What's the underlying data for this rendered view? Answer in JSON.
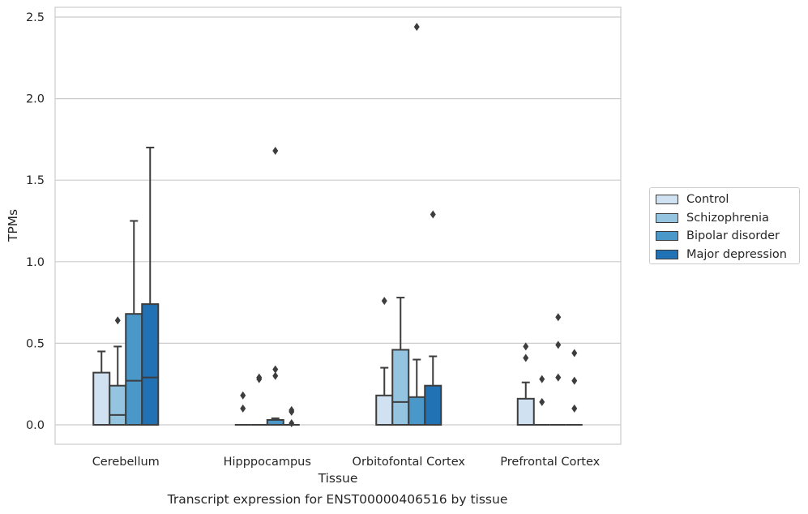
{
  "caption": "Transcript expression for ENST00000406516 by tissue",
  "chart_data": {
    "type": "box",
    "xlabel": "Tissue",
    "ylabel": "TPMs",
    "ylim": [
      -0.12,
      2.56
    ],
    "yticks": [
      "0.0",
      "0.5",
      "1.0",
      "1.5",
      "2.0",
      "2.5"
    ],
    "categories": [
      "Cerebellum",
      "Hipppocampus",
      "Orbitofontal Cortex",
      "Prefrontal Cortex"
    ],
    "grid": true,
    "legend_position": "right",
    "series": [
      {
        "name": "Control",
        "color": "#d0e1f1",
        "boxes": [
          {
            "q1": 0,
            "median": 0,
            "q3": 0.32,
            "whisker_low": 0,
            "whisker_high": 0.45,
            "outliers": []
          },
          {
            "q1": 0,
            "median": 0,
            "q3": 0,
            "whisker_low": 0,
            "whisker_high": 0,
            "outliers": [
              0.1,
              0.18
            ]
          },
          {
            "q1": 0,
            "median": 0,
            "q3": 0.18,
            "whisker_low": 0,
            "whisker_high": 0.35,
            "outliers": [
              0.76
            ]
          },
          {
            "q1": 0,
            "median": 0,
            "q3": 0.16,
            "whisker_low": 0,
            "whisker_high": 0.26,
            "outliers": [
              0.41,
              0.48
            ]
          }
        ]
      },
      {
        "name": "Schizophrenia",
        "color": "#94c4df",
        "boxes": [
          {
            "q1": 0,
            "median": 0.06,
            "q3": 0.24,
            "whisker_low": 0,
            "whisker_high": 0.48,
            "outliers": [
              0.64
            ]
          },
          {
            "q1": 0,
            "median": 0,
            "q3": 0,
            "whisker_low": 0,
            "whisker_high": 0,
            "outliers": [
              0.28,
              0.29
            ]
          },
          {
            "q1": 0,
            "median": 0.14,
            "q3": 0.46,
            "whisker_low": 0,
            "whisker_high": 0.78,
            "outliers": []
          },
          {
            "q1": 0,
            "median": 0,
            "q3": 0,
            "whisker_low": 0,
            "whisker_high": 0,
            "outliers": [
              0.14,
              0.28
            ]
          }
        ]
      },
      {
        "name": "Bipolar disorder",
        "color": "#4a98c9",
        "boxes": [
          {
            "q1": 0,
            "median": 0.27,
            "q3": 0.68,
            "whisker_low": 0,
            "whisker_high": 1.25,
            "outliers": []
          },
          {
            "q1": 0,
            "median": 0,
            "q3": 0.03,
            "whisker_low": 0,
            "whisker_high": 0.04,
            "outliers": [
              0.3,
              0.34,
              1.68
            ]
          },
          {
            "q1": 0,
            "median": 0,
            "q3": 0.17,
            "whisker_low": 0,
            "whisker_high": 0.4,
            "outliers": [
              2.44
            ]
          },
          {
            "q1": 0,
            "median": 0,
            "q3": 0,
            "whisker_low": 0,
            "whisker_high": 0,
            "outliers": [
              0.29,
              0.49,
              0.66
            ]
          }
        ]
      },
      {
        "name": "Major depression",
        "color": "#2171b5",
        "boxes": [
          {
            "q1": 0,
            "median": 0.29,
            "q3": 0.74,
            "whisker_low": 0,
            "whisker_high": 1.7,
            "outliers": []
          },
          {
            "q1": 0,
            "median": 0,
            "q3": 0,
            "whisker_low": 0,
            "whisker_high": 0,
            "outliers": [
              0.01,
              0.08,
              0.09
            ]
          },
          {
            "q1": 0,
            "median": 0,
            "q3": 0.24,
            "whisker_low": 0,
            "whisker_high": 0.42,
            "outliers": [
              1.29
            ]
          },
          {
            "q1": 0,
            "median": 0,
            "q3": 0,
            "whisker_low": 0,
            "whisker_high": 0,
            "outliers": [
              0.1,
              0.27,
              0.44
            ]
          }
        ]
      }
    ]
  }
}
